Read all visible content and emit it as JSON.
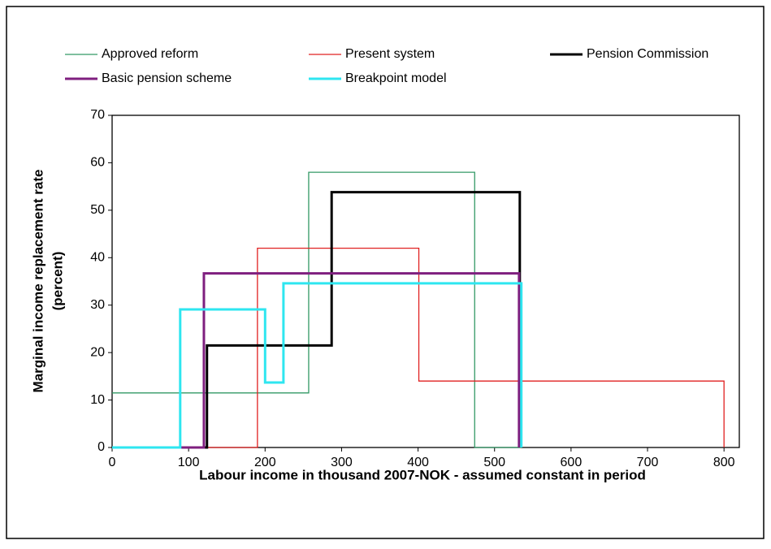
{
  "chart_data": {
    "type": "line",
    "x_label": "Labour income in thousand 2007-NOK - assumed constant in period",
    "y_label": "Marginal income replacement rate",
    "y_label_line2": "(percent)",
    "xlim": [
      0,
      820
    ],
    "xticks": [
      0,
      100,
      200,
      300,
      400,
      500,
      600,
      700,
      800
    ],
    "ylim": [
      0,
      70
    ],
    "yticks": [
      0,
      10,
      20,
      30,
      40,
      50,
      60,
      70
    ],
    "series": [
      {
        "name": "Approved reform",
        "color": "#339966",
        "width": 1.3,
        "x": [
          0,
          257,
          257,
          474,
          474,
          535
        ],
        "values": [
          11.5,
          11.5,
          58,
          58,
          0,
          0
        ]
      },
      {
        "name": "Present system",
        "color": "#e02020",
        "width": 1.3,
        "x": [
          0,
          190,
          190,
          401,
          401,
          800,
          800
        ],
        "values": [
          0,
          0,
          42,
          42,
          14,
          14,
          0
        ]
      },
      {
        "name": "Pension Commission",
        "color": "#000000",
        "width": 3,
        "x": [
          0,
          124,
          124,
          287,
          287,
          533,
          533
        ],
        "values": [
          0,
          0,
          21.5,
          21.5,
          53.8,
          53.8,
          0
        ]
      },
      {
        "name": "Basic pension scheme",
        "color": "#7f1f7f",
        "width": 3,
        "x": [
          0,
          120,
          120,
          532,
          532
        ],
        "values": [
          0,
          0,
          36.7,
          36.7,
          0
        ]
      },
      {
        "name": "Breakpoint model",
        "color": "#2ee6f0",
        "width": 3,
        "x": [
          0,
          89,
          89,
          200,
          200,
          224,
          224,
          535,
          535
        ],
        "values": [
          0,
          0,
          29.1,
          29.1,
          13.7,
          13.7,
          34.6,
          34.6,
          0
        ]
      }
    ]
  }
}
